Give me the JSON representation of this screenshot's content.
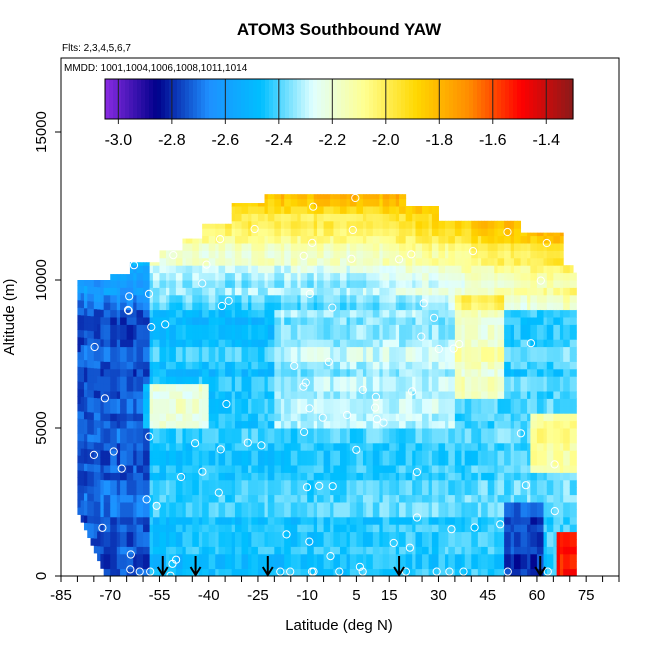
{
  "chart_data": {
    "type": "heatmap",
    "title": "ATOM3 Southbound YAW",
    "flights_note": "Flts: 2,3,4,5,6,7",
    "dates_note": "MMDD: 1001,1004,1006,1008,1011,1014",
    "xlabel": "Latitude (deg N)",
    "ylabel": "Altitude (m)",
    "xlim": [
      -85,
      85
    ],
    "ylim": [
      0,
      17500
    ],
    "x_ticks": [
      -85,
      -70,
      -55,
      -40,
      -25,
      -10,
      5,
      15,
      30,
      45,
      60,
      75
    ],
    "y_ticks": [
      0,
      5000,
      10000,
      15000
    ],
    "colorbar": {
      "min": -3.05,
      "max": -1.3,
      "ticks": [
        -3.0,
        -2.8,
        -2.6,
        -2.4,
        -2.2,
        -2.0,
        -1.8,
        -1.6,
        -1.4
      ],
      "tick_labels": [
        "-3.0",
        "-2.8",
        "-2.6",
        "-2.4",
        "-2.2",
        "-2.0",
        "-1.8",
        "-1.6",
        "-1.4"
      ],
      "colors": [
        "#8a2be2",
        "#00008b",
        "#1e90ff",
        "#00bfff",
        "#e0ffff",
        "#ffff8f",
        "#ffd700",
        "#ff8c00",
        "#ff0000",
        "#8b1a1a"
      ]
    },
    "profile_arrow_latitudes": [
      -54,
      -44,
      -22,
      18,
      61
    ],
    "grid": false
  }
}
